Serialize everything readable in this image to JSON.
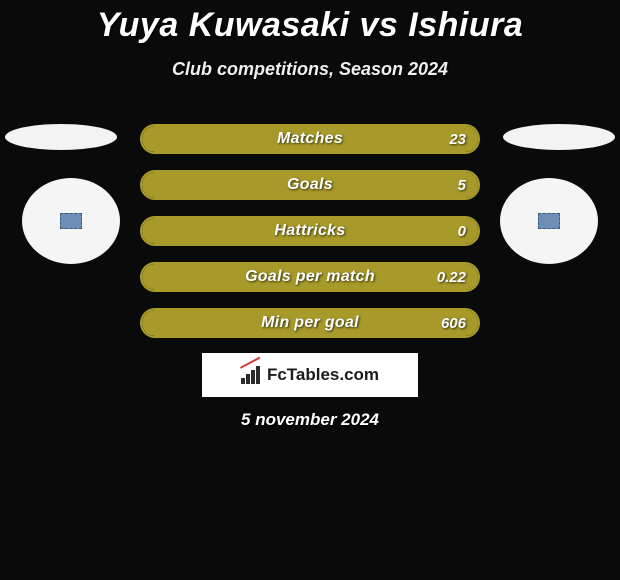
{
  "title": "Yuya Kuwasaki vs Ishiura",
  "subtitle": "Club competitions, Season 2024",
  "date": "5 november 2024",
  "footer_brand": "FcTables.com",
  "colors": {
    "bar_fill": "#a79a2a",
    "bar_border": "#a79a2a",
    "background": "#0a0a0a",
    "badge_bg": "#6d8fb5"
  },
  "stats": [
    {
      "label": "Matches",
      "value": "23",
      "fill_pct": 100
    },
    {
      "label": "Goals",
      "value": "5",
      "fill_pct": 100
    },
    {
      "label": "Hattricks",
      "value": "0",
      "fill_pct": 100
    },
    {
      "label": "Goals per match",
      "value": "0.22",
      "fill_pct": 100
    },
    {
      "label": "Min per goal",
      "value": "606",
      "fill_pct": 100
    }
  ]
}
